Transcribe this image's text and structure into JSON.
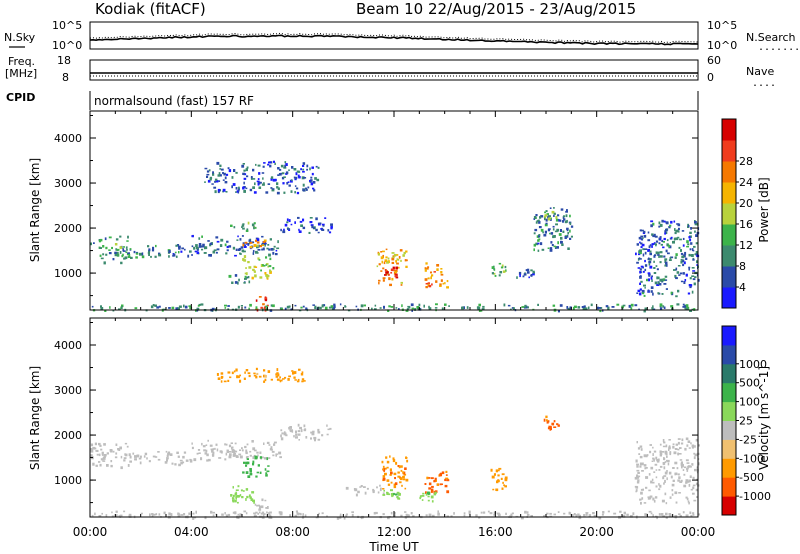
{
  "header": {
    "station": "Kodiak (fitACF)",
    "beam_info": "Beam 10 22/Aug/2015 - 23/Aug/2015",
    "mode": "normalsound (fast) 157 RF"
  },
  "labels": {
    "nsky": "N.Sky",
    "nsearch": "N.Search",
    "freq": "Freq.",
    "mhz": "[MHz]",
    "cpid": "CPID",
    "nave": "Nave",
    "noise_tick_hi": "10^5",
    "noise_tick_lo": "10^0",
    "freq_tick_hi": "18",
    "freq_tick_lo": "8",
    "nave_tick_hi": "60",
    "nave_tick_lo": "0",
    "nsearch_tick_hi": "10^5",
    "nsearch_tick_lo": "10^0",
    "dotted_marker": "........",
    "nave_dotted_marker": "...."
  },
  "colors": {
    "power": [
      "#1a1aff",
      "#2a4aa8",
      "#3c8a6e",
      "#3cb34a",
      "#b8d23c",
      "#f5b400",
      "#f57800",
      "#f03c1e",
      "#d60000"
    ],
    "velocity": [
      "#d60000",
      "#ff5a00",
      "#ff9a00",
      "#f0c070",
      "#bdbdbd",
      "#8ad85a",
      "#3cb34a",
      "#2a7a6a",
      "#2a4aa8",
      "#1a1aff"
    ]
  },
  "chart_data": [
    {
      "type": "heatmap",
      "name": "power",
      "xlabel": "",
      "ylabel": "Slant Range [km]",
      "colorbar_label": "Power [dB]",
      "colorbar_ticks": [
        "4",
        "8",
        "12",
        "16",
        "20",
        "24",
        "28"
      ],
      "x_ticks": [
        "00:00",
        "04:00",
        "08:00",
        "12:00",
        "16:00",
        "20:00",
        "00:00"
      ],
      "y_ticks": [
        "1000",
        "2000",
        "3000",
        "4000"
      ],
      "xlim": [
        0,
        24
      ],
      "ylim": [
        180,
        4600
      ],
      "echoes": [
        {
          "t0": 0.0,
          "t1": 1.5,
          "r0": 1250,
          "r1": 1850,
          "v": 11
        },
        {
          "t0": 1.5,
          "t1": 4.0,
          "r0": 1350,
          "r1": 1650,
          "v": 9
        },
        {
          "t0": 4.0,
          "t1": 7.5,
          "r0": 1400,
          "r1": 1850,
          "v": 8
        },
        {
          "t0": 7.5,
          "t1": 9.5,
          "r0": 1900,
          "r1": 2250,
          "v": 6
        },
        {
          "t0": 5.5,
          "t1": 6.5,
          "r0": 1950,
          "r1": 2150,
          "v": 12
        },
        {
          "t0": 6.0,
          "t1": 7.0,
          "r0": 1550,
          "r1": 1750,
          "v": 20
        },
        {
          "t0": 6.0,
          "t1": 7.2,
          "r0": 900,
          "r1": 1400,
          "v": 16
        },
        {
          "t0": 5.4,
          "t1": 6.3,
          "r0": 800,
          "r1": 1000,
          "v": 10
        },
        {
          "t0": 6.5,
          "t1": 7.0,
          "r0": 200,
          "r1": 500,
          "v": 27
        },
        {
          "t0": 4.5,
          "t1": 9.0,
          "r0": 2800,
          "r1": 3500,
          "v": 7
        },
        {
          "t0": 11.3,
          "t1": 12.5,
          "r0": 750,
          "r1": 1550,
          "v": 20
        },
        {
          "t0": 11.6,
          "t1": 12.1,
          "r0": 900,
          "r1": 1150,
          "v": 28
        },
        {
          "t0": 13.2,
          "t1": 14.1,
          "r0": 700,
          "r1": 1250,
          "v": 22
        },
        {
          "t0": 15.8,
          "t1": 16.4,
          "r0": 950,
          "r1": 1250,
          "v": 12
        },
        {
          "t0": 16.8,
          "t1": 17.5,
          "r0": 900,
          "r1": 1100,
          "v": 7
        },
        {
          "t0": 17.5,
          "t1": 19.0,
          "r0": 1500,
          "r1": 2500,
          "v": 9
        },
        {
          "t0": 17.9,
          "t1": 18.4,
          "r0": 2150,
          "r1": 2450,
          "v": 14
        },
        {
          "t0": 21.5,
          "t1": 24.0,
          "r0": 500,
          "r1": 2200,
          "v": 8
        },
        {
          "t0": 0.0,
          "t1": 24.0,
          "r0": 180,
          "r1": 330,
          "v": 10
        }
      ]
    },
    {
      "type": "heatmap",
      "name": "velocity",
      "xlabel": "Time UT",
      "ylabel": "Slant Range [km]",
      "colorbar_label": "Velocity [m s^-1]",
      "colorbar_ticks": [
        "-1000",
        "-500",
        "-100",
        "-25",
        "25",
        "100",
        "500",
        "1000"
      ],
      "x_ticks": [
        "00:00",
        "04:00",
        "08:00",
        "12:00",
        "16:00",
        "20:00",
        "00:00"
      ],
      "y_ticks": [
        "1000",
        "2000",
        "3000",
        "4000"
      ],
      "xlim": [
        0,
        24
      ],
      "ylim": [
        180,
        4600
      ],
      "echoes": [
        {
          "t0": 0.0,
          "t1": 1.5,
          "r0": 1300,
          "r1": 1850,
          "v": 0
        },
        {
          "t0": 1.5,
          "t1": 4.0,
          "r0": 1350,
          "r1": 1650,
          "v": 0
        },
        {
          "t0": 4.0,
          "t1": 7.5,
          "r0": 1450,
          "r1": 1900,
          "v": 0
        },
        {
          "t0": 7.5,
          "t1": 9.5,
          "r0": 1900,
          "r1": 2250,
          "v": 0
        },
        {
          "t0": 6.0,
          "t1": 7.0,
          "r0": 1100,
          "r1": 1600,
          "v": 300
        },
        {
          "t0": 5.5,
          "t1": 6.5,
          "r0": 500,
          "r1": 950,
          "v": 60
        },
        {
          "t0": 6.5,
          "t1": 7.0,
          "r0": 200,
          "r1": 600,
          "v": 0
        },
        {
          "t0": 5.0,
          "t1": 8.5,
          "r0": 3200,
          "r1": 3500,
          "v": -150
        },
        {
          "t0": 10.0,
          "t1": 11.6,
          "r0": 700,
          "r1": 900,
          "v": 0
        },
        {
          "t0": 11.5,
          "t1": 12.5,
          "r0": 800,
          "r1": 1550,
          "v": -400
        },
        {
          "t0": 11.5,
          "t1": 12.2,
          "r0": 600,
          "r1": 800,
          "v": 80
        },
        {
          "t0": 13.2,
          "t1": 14.1,
          "r0": 750,
          "r1": 1250,
          "v": -600
        },
        {
          "t0": 13.0,
          "t1": 13.6,
          "r0": 550,
          "r1": 750,
          "v": 80
        },
        {
          "t0": 15.8,
          "t1": 16.4,
          "r0": 800,
          "r1": 1300,
          "v": -300
        },
        {
          "t0": 17.9,
          "t1": 18.5,
          "r0": 2150,
          "r1": 2450,
          "v": -700
        },
        {
          "t0": 21.5,
          "t1": 24.0,
          "r0": 500,
          "r1": 1950,
          "v": 0
        },
        {
          "t0": 0.0,
          "t1": 24.0,
          "r0": 180,
          "r1": 330,
          "v": 0
        }
      ]
    }
  ]
}
